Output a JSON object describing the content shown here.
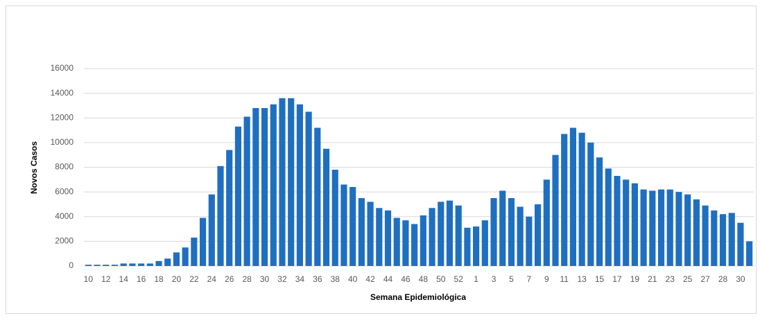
{
  "chart_data": {
    "type": "bar",
    "x_label": "Semana Epidemiológica",
    "y_label": "Novos Casos",
    "categories": [
      "10",
      null,
      "12",
      null,
      "14",
      null,
      "16",
      null,
      "18",
      null,
      "20",
      null,
      "22",
      null,
      "24",
      null,
      "26",
      null,
      "28",
      null,
      "30",
      null,
      "32",
      null,
      "34",
      null,
      "36",
      null,
      "38",
      null,
      "40",
      null,
      "42",
      null,
      "44",
      null,
      "46",
      null,
      "48",
      null,
      "50",
      null,
      "52",
      null,
      "1",
      null,
      "3",
      null,
      "5",
      null,
      "7",
      null,
      "9",
      null,
      "11",
      null,
      "13",
      null,
      "15",
      null,
      "17",
      null,
      "19",
      null,
      "21",
      null,
      "23",
      null,
      "25",
      null,
      "27",
      null,
      "28",
      null,
      "30",
      null
    ],
    "values": [
      100,
      100,
      100,
      100,
      200,
      200,
      200,
      200,
      400,
      600,
      1100,
      1500,
      2300,
      3900,
      5800,
      8100,
      9400,
      11300,
      12100,
      12800,
      12800,
      13100,
      13600,
      13600,
      13100,
      12500,
      11200,
      9500,
      7800,
      6600,
      6400,
      5500,
      5200,
      4700,
      4500,
      3900,
      3700,
      3400,
      4100,
      4700,
      5200,
      5300,
      4900,
      3100,
      3200,
      3700,
      5500,
      6100,
      5500,
      4800,
      4000,
      5000,
      7000,
      9000,
      10700,
      11200,
      10800,
      10000,
      8800,
      7900,
      7300,
      7000,
      6700,
      6200,
      6100,
      6200,
      6200,
      6000,
      5800,
      5400,
      4900,
      4500,
      4200,
      4300,
      3500,
      2000
    ],
    "color": "#1f6fc0",
    "ylim": [
      0,
      16000
    ],
    "yticks": [
      0,
      2000,
      4000,
      6000,
      8000,
      10000,
      12000,
      14000,
      16000
    ],
    "grid": true
  }
}
